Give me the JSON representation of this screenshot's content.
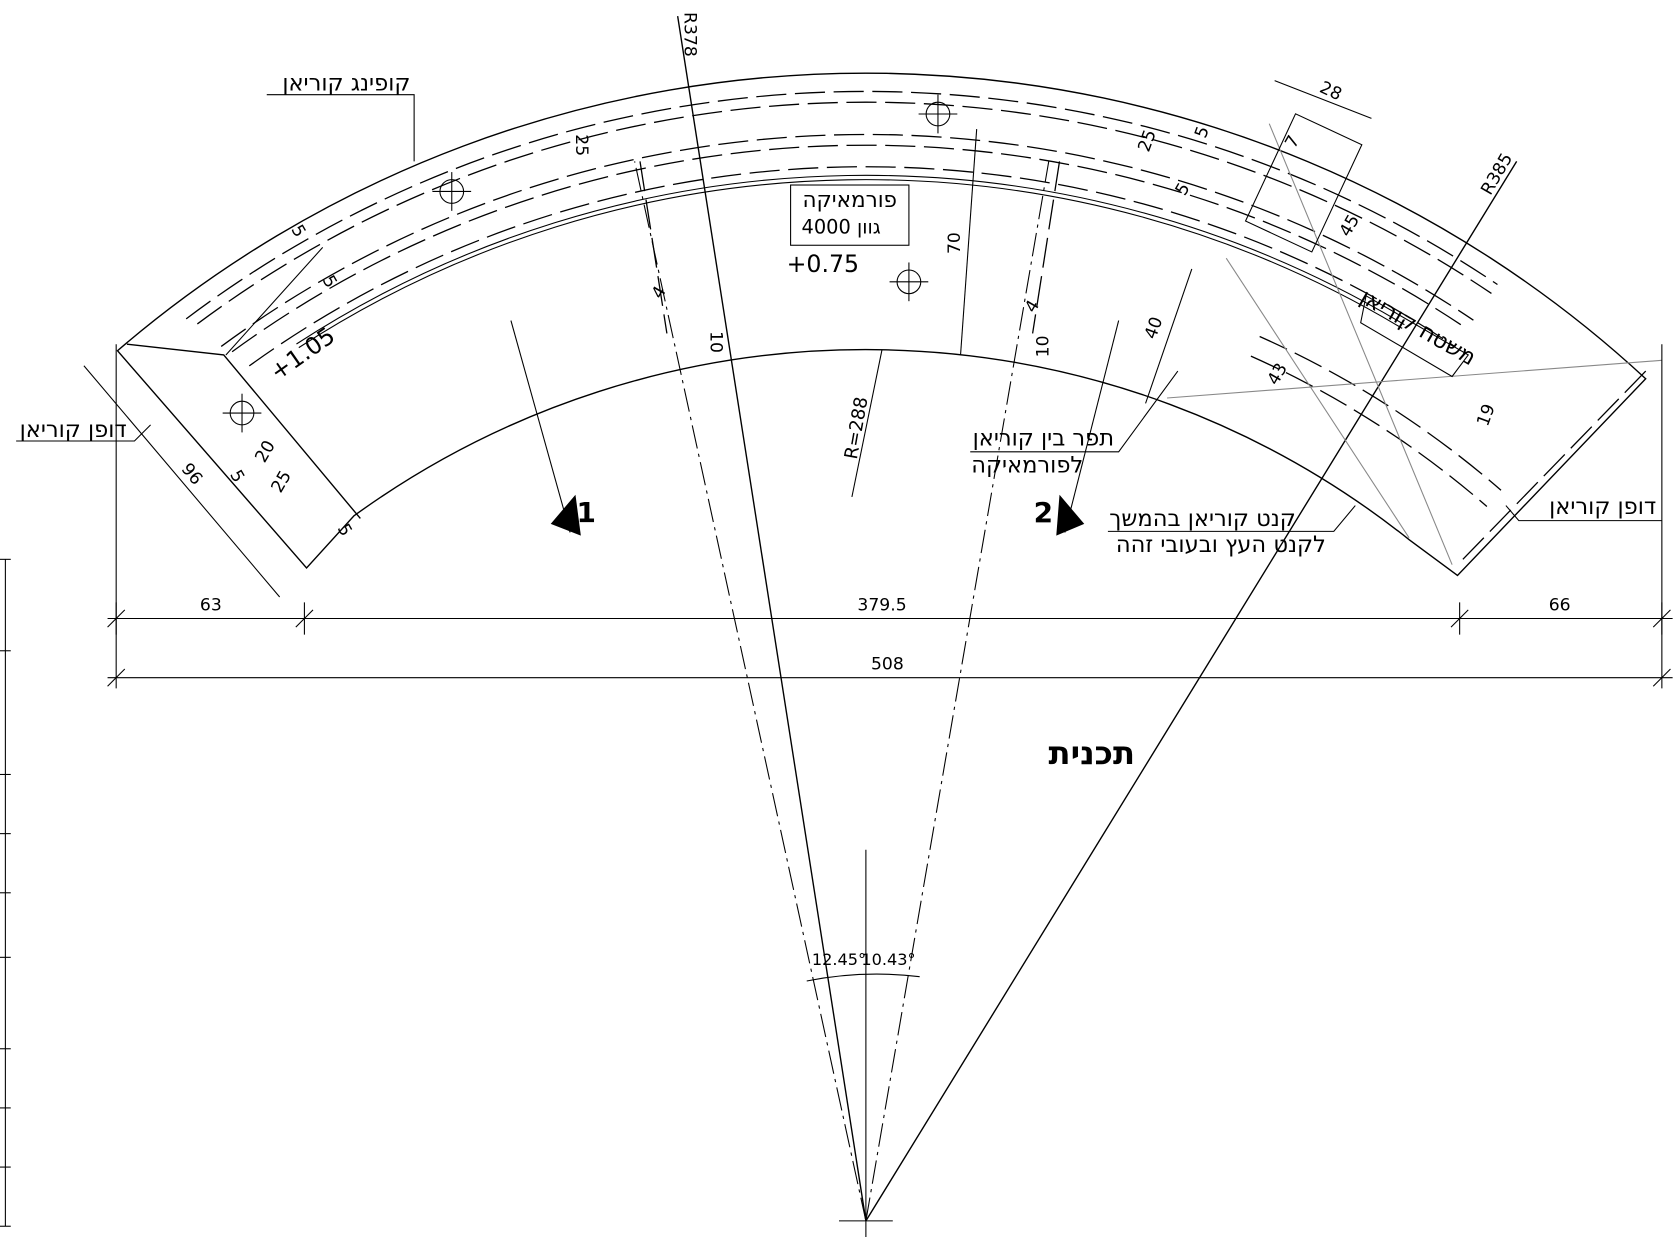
{
  "title": "תכנית",
  "callouts": [
    "קופינג קוריאן",
    "דופן קוריאן",
    "דופן קוריאן",
    "משטח קוריאן",
    "תפר בין קוריאן",
    "לפורמאיקה",
    "קנט קוריאן בהמשך",
    "לקנט העץ ובעובי זהה"
  ],
  "material_box": [
    "פורמאיקה",
    "גוון 4000"
  ],
  "levels": [
    "+0.75",
    "+1.05"
  ],
  "radii": [
    "R378",
    "R385",
    "R=288"
  ],
  "dimensions": [
    "63",
    "379.5",
    "66",
    "508",
    "28",
    "25",
    "25",
    "5",
    "7",
    "5",
    "45",
    "70",
    "40",
    "43",
    "19",
    "4",
    "10",
    "4",
    "10",
    "5",
    "5",
    "20",
    "25",
    "5",
    "5",
    "96"
  ],
  "angles": [
    "12.45°",
    "10.43°"
  ],
  "sections": [
    "1",
    "2"
  ]
}
